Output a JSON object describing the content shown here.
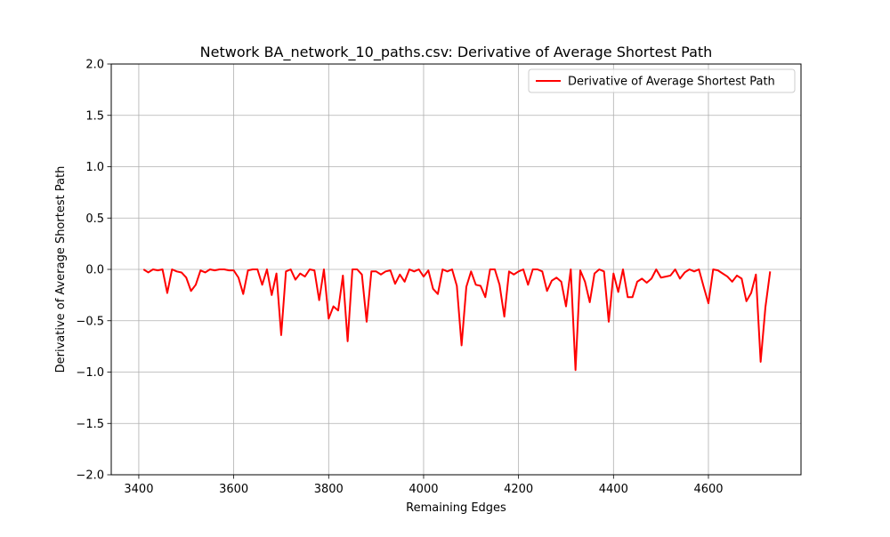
{
  "chart_data": {
    "type": "line",
    "title": "Network BA_network_10_paths.csv: Derivative of Average Shortest Path",
    "xlabel": "Remaining Edges",
    "ylabel": "Derivative of Average Shortest Path",
    "xlim": [
      3342,
      4795
    ],
    "ylim": [
      -2.0,
      2.0
    ],
    "x_ticks": [
      3400,
      3600,
      3800,
      4000,
      4200,
      4400,
      4600
    ],
    "x_tick_labels": [
      "3400",
      "3600",
      "3800",
      "4000",
      "4200",
      "4400",
      "4600"
    ],
    "y_ticks": [
      -2.0,
      -1.5,
      -1.0,
      -0.5,
      0.0,
      0.5,
      1.0,
      1.5,
      2.0
    ],
    "y_tick_labels": [
      "−2.0",
      "−1.5",
      "−1.0",
      "−0.5",
      "0.0",
      "0.5",
      "1.0",
      "1.5",
      "2.0"
    ],
    "grid": true,
    "legend_position": "top-right",
    "series": [
      {
        "name": "Derivative of Average Shortest Path",
        "color": "#ff0000",
        "x": [
          3410,
          3420,
          3430,
          3440,
          3450,
          3460,
          3470,
          3480,
          3490,
          3500,
          3510,
          3520,
          3530,
          3540,
          3550,
          3560,
          3570,
          3580,
          3590,
          3600,
          3610,
          3620,
          3630,
          3640,
          3650,
          3660,
          3670,
          3680,
          3690,
          3700,
          3710,
          3720,
          3730,
          3740,
          3750,
          3760,
          3770,
          3780,
          3790,
          3800,
          3810,
          3820,
          3830,
          3840,
          3850,
          3860,
          3870,
          3880,
          3890,
          3900,
          3910,
          3920,
          3930,
          3940,
          3950,
          3960,
          3970,
          3980,
          3990,
          4000,
          4010,
          4020,
          4030,
          4040,
          4050,
          4060,
          4070,
          4080,
          4090,
          4100,
          4110,
          4120,
          4130,
          4140,
          4150,
          4160,
          4170,
          4180,
          4190,
          4200,
          4210,
          4220,
          4230,
          4240,
          4250,
          4260,
          4270,
          4280,
          4290,
          4300,
          4310,
          4320,
          4330,
          4340,
          4350,
          4360,
          4370,
          4380,
          4390,
          4400,
          4410,
          4420,
          4430,
          4440,
          4450,
          4460,
          4470,
          4480,
          4490,
          4500,
          4510,
          4520,
          4530,
          4540,
          4550,
          4560,
          4570,
          4580,
          4590,
          4600,
          4610,
          4620,
          4630,
          4640,
          4650,
          4660,
          4670,
          4680,
          4690,
          4700,
          4710,
          4720,
          4730
        ],
        "y": [
          0.0,
          -0.03,
          0.0,
          -0.01,
          0.0,
          -0.23,
          0.0,
          -0.02,
          -0.03,
          -0.08,
          -0.21,
          -0.15,
          -0.01,
          -0.03,
          0.0,
          -0.01,
          0.0,
          0.0,
          -0.01,
          -0.01,
          -0.08,
          -0.24,
          -0.01,
          0.0,
          0.0,
          -0.15,
          0.0,
          -0.25,
          -0.04,
          -0.64,
          -0.02,
          0.0,
          -0.1,
          -0.04,
          -0.07,
          0.0,
          -0.01,
          -0.3,
          0.0,
          -0.48,
          -0.36,
          -0.4,
          -0.06,
          -0.7,
          0.0,
          0.0,
          -0.05,
          -0.51,
          -0.02,
          -0.02,
          -0.05,
          -0.02,
          -0.01,
          -0.14,
          -0.05,
          -0.12,
          0.0,
          -0.02,
          0.0,
          -0.07,
          -0.01,
          -0.19,
          -0.24,
          0.0,
          -0.02,
          0.0,
          -0.16,
          -0.74,
          -0.17,
          -0.02,
          -0.15,
          -0.16,
          -0.27,
          0.0,
          0.0,
          -0.15,
          -0.46,
          -0.02,
          -0.05,
          -0.02,
          0.0,
          -0.15,
          0.0,
          0.0,
          -0.02,
          -0.21,
          -0.11,
          -0.08,
          -0.12,
          -0.36,
          0.0,
          -0.98,
          -0.01,
          -0.12,
          -0.32,
          -0.04,
          0.0,
          -0.02,
          -0.51,
          -0.04,
          -0.22,
          0.0,
          -0.27,
          -0.27,
          -0.12,
          -0.09,
          -0.13,
          -0.09,
          0.0,
          -0.08,
          -0.07,
          -0.06,
          0.0,
          -0.09,
          -0.03,
          0.0,
          -0.02,
          0.0,
          -0.17,
          -0.33,
          0.0,
          -0.01,
          -0.04,
          -0.07,
          -0.12,
          -0.06,
          -0.09,
          -0.31,
          -0.23,
          -0.05,
          -0.9,
          -0.37,
          -0.02
        ]
      }
    ]
  }
}
